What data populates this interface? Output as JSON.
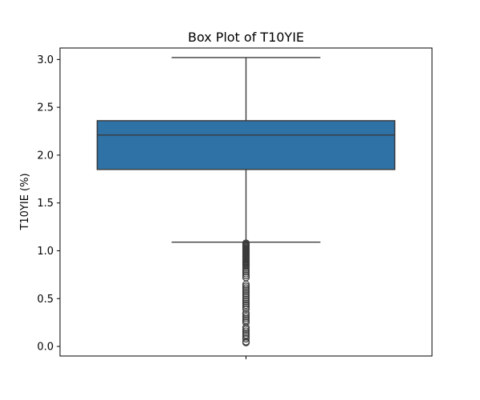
{
  "chart_data": {
    "type": "box",
    "title": "Box Plot of T10YIE",
    "xlabel": "",
    "ylabel": "T10YIE (%)",
    "ylim": [
      -0.1,
      3.12
    ],
    "yticks": [
      0.0,
      0.5,
      1.0,
      1.5,
      2.0,
      2.5,
      3.0
    ],
    "ytick_labels": [
      "0.0",
      "0.5",
      "1.0",
      "1.5",
      "2.0",
      "2.5",
      "3.0"
    ],
    "grid": false,
    "box": {
      "q1": 1.85,
      "median": 2.21,
      "q3": 2.36,
      "whisker_low": 1.09,
      "whisker_high": 3.02,
      "outliers": [
        1.08,
        1.07,
        1.06,
        1.05,
        1.04,
        1.03,
        1.02,
        1.01,
        1.0,
        0.99,
        0.98,
        0.97,
        0.96,
        0.95,
        0.94,
        0.93,
        0.92,
        0.91,
        0.9,
        0.89,
        0.88,
        0.87,
        0.86,
        0.85,
        0.84,
        0.82,
        0.8,
        0.78,
        0.76,
        0.74,
        0.72,
        0.65,
        0.63,
        0.61,
        0.59,
        0.57,
        0.55,
        0.53,
        0.51,
        0.49,
        0.47,
        0.45,
        0.43,
        0.41,
        0.39,
        0.35,
        0.33,
        0.31,
        0.29,
        0.27,
        0.25,
        0.2,
        0.18,
        0.16,
        0.14,
        0.12,
        0.1,
        0.08,
        0.05,
        0.04
      ]
    },
    "colors": {
      "box_fill": "#2e72a6",
      "line": "#3a3a3a"
    }
  }
}
